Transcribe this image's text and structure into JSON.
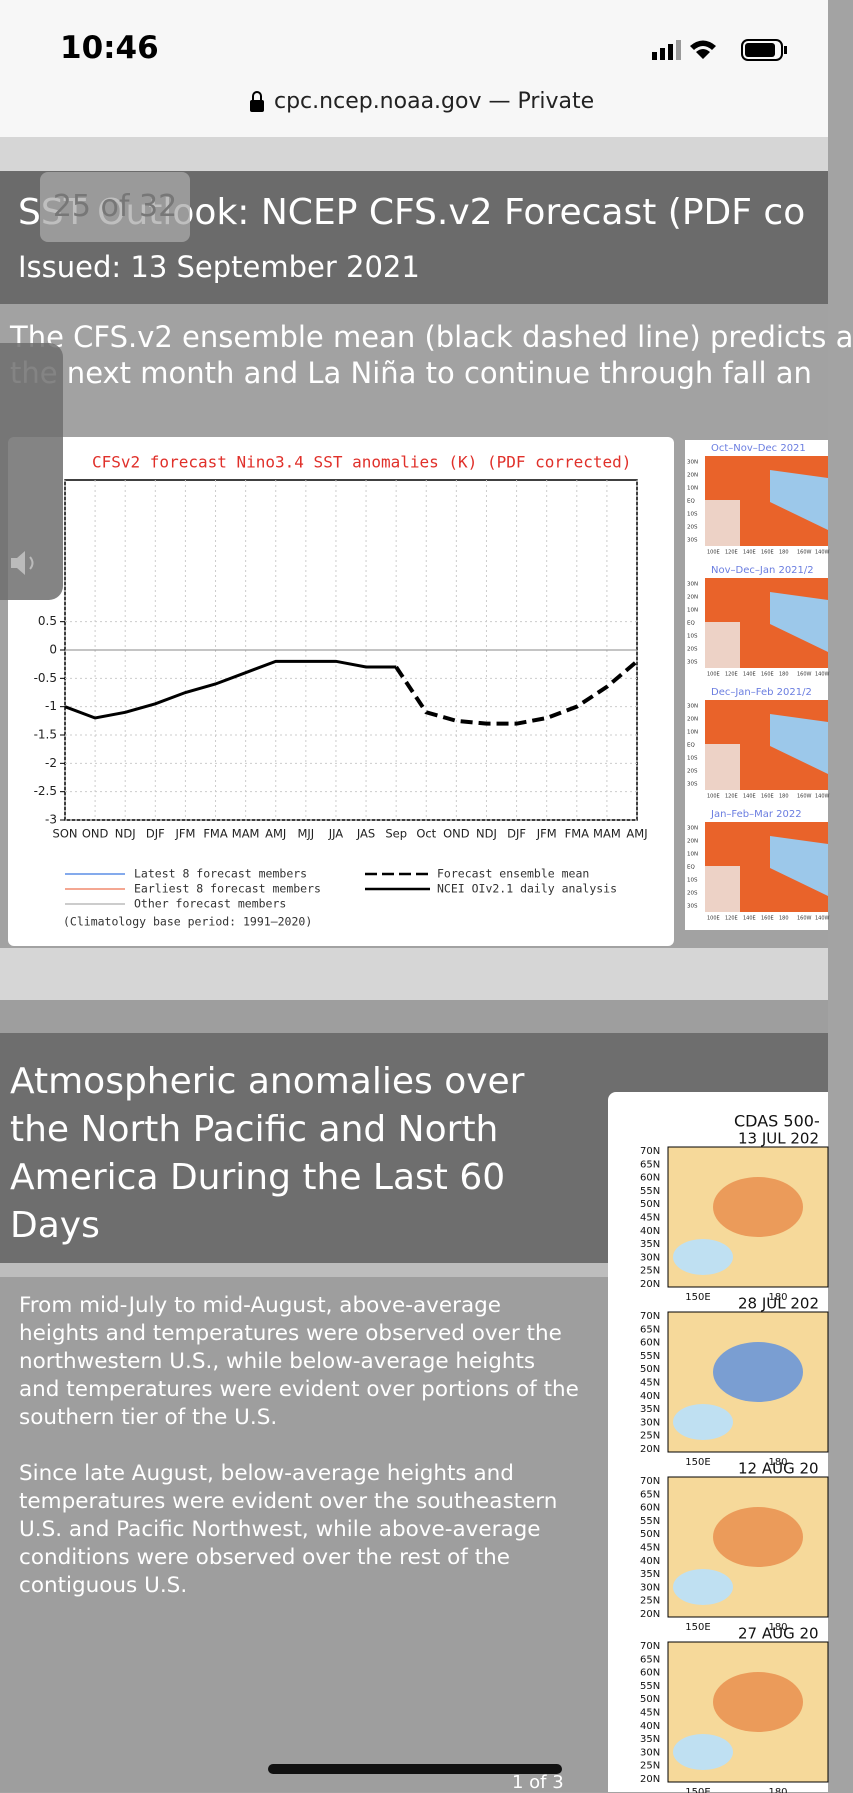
{
  "status": {
    "time": "10:46"
  },
  "url": "cpc.ncep.noaa.gov — Private",
  "slide1": {
    "counter": "25 of 32",
    "title": "SST Outlook: NCEP CFS.v2 Forecast (PDF co",
    "issued": "Issued: 13 September 2021",
    "lines": [
      "The CFS.v2 ensemble mean (black dashed line) predicts a",
      "the next month and La Niña to continue through fall an"
    ]
  },
  "chart_data": {
    "type": "line",
    "title": "CFSv2 forecast Nino3.4 SST anomalies (K) (PDF corrected)",
    "categories": [
      "SON",
      "OND",
      "NDJ",
      "DJF",
      "JFM",
      "FMA",
      "MAM",
      "AMJ",
      "MJJ",
      "JJA",
      "JAS",
      "Sep",
      "Oct",
      "OND",
      "NDJ",
      "DJF",
      "JFM",
      "FMA",
      "MAM",
      "AMJ"
    ],
    "ylim": [
      -3,
      3
    ],
    "yticks": [
      0.5,
      0,
      -0.5,
      -1,
      -1.5,
      -2,
      -2.5,
      -3
    ],
    "grid": true,
    "series": [
      {
        "name": "Forecast ensemble mean",
        "color": "#000000",
        "dashed": true,
        "values": [
          null,
          null,
          null,
          null,
          null,
          null,
          null,
          null,
          null,
          null,
          null,
          -0.3,
          -1.1,
          -1.25,
          -1.3,
          -1.3,
          -1.2,
          -1.0,
          -0.65,
          -0.2
        ]
      },
      {
        "name": "NCEI OIv2.1 daily analysis",
        "color": "#000000",
        "dashed": false,
        "values": [
          -1.0,
          -1.2,
          -1.1,
          -0.95,
          -0.75,
          -0.6,
          -0.4,
          -0.2,
          -0.2,
          -0.2,
          -0.3,
          -0.3,
          null,
          null,
          null,
          null,
          null,
          null,
          null,
          null
        ]
      }
    ],
    "member_legend": [
      {
        "name": "Latest 8 forecast members",
        "color": "#5b8ee6"
      },
      {
        "name": "Earliest 8 forecast members",
        "color": "#f08a6e"
      },
      {
        "name": "Other forecast members",
        "color": "#bbbbbb"
      }
    ],
    "note": "(Climatology base period: 1991–2020)"
  },
  "maps": {
    "titles": [
      "Oct–Nov–Dec 2021",
      "Nov–Dec–Jan 2021/2",
      "Dec–Jan–Feb 2021/2",
      "Jan–Feb–Mar 2022"
    ],
    "lat": [
      "30N",
      "20N",
      "10N",
      "EQ",
      "10S",
      "20S",
      "30S"
    ],
    "lon": [
      "100E",
      "120E",
      "140E",
      "160E",
      "180",
      "160W",
      "140W"
    ]
  },
  "slide2": {
    "title": "Atmospheric anomalies over the North Pacific and North America During the Last 60 Days",
    "paragraphs": [
      "From mid-July to mid-August, above-average heights and temperatures were observed over the northwestern U.S., while below-average heights and temperatures were evident over portions of the southern tier of the U.S.",
      "Since late August, below-average heights and temperatures were evident over the southeastern U.S. and Pacific Northwest, while above-average conditions were observed over the rest of the contiguous U.S."
    ],
    "panel_title": "CDAS 500-",
    "dates": [
      "13 JUL 202",
      "28 JUL 202",
      "12 AUG 20",
      "27 AUG 20"
    ],
    "lat": [
      "70N",
      "65N",
      "60N",
      "55N",
      "50N",
      "45N",
      "40N",
      "35N",
      "30N",
      "25N",
      "20N"
    ],
    "lon": [
      "150E",
      "180"
    ],
    "pager": "1 of 3"
  }
}
